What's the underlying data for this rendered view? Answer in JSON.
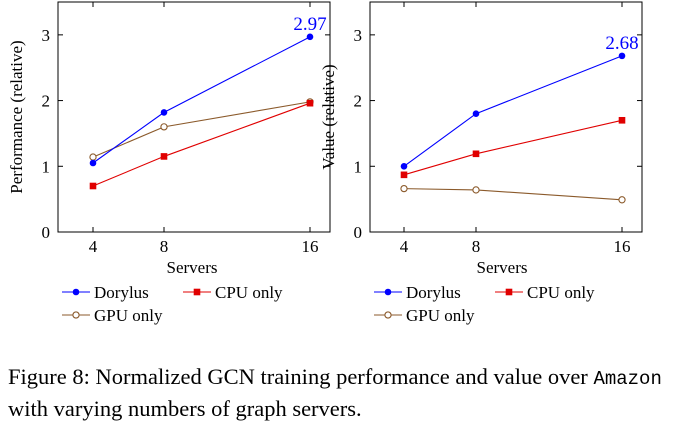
{
  "chart_data": [
    {
      "type": "line",
      "xlabel": "Servers",
      "ylabel": "Performance (relative)",
      "x": [
        4,
        8,
        16
      ],
      "x_tick_labels": [
        "4",
        "8",
        "16"
      ],
      "ylim": [
        0,
        3.5
      ],
      "y_ticks": [
        0,
        1,
        2,
        3
      ],
      "y_tick_labels": [
        "0",
        "1",
        "2",
        "3"
      ],
      "series": [
        {
          "name": "Dorylus",
          "marker": "filled-circle",
          "color": "#0000ff",
          "values": [
            1.05,
            1.82,
            2.97
          ]
        },
        {
          "name": "CPU only",
          "marker": "filled-square",
          "color": "#e00000",
          "values": [
            0.7,
            1.15,
            1.96
          ]
        },
        {
          "name": "GPU only",
          "marker": "open-circle",
          "color": "#8b5a2b",
          "values": [
            1.14,
            1.6,
            1.98
          ]
        }
      ],
      "annotation": {
        "text": "2.97",
        "series": 0,
        "index": 2,
        "color": "#0000ff"
      },
      "legend": "bottom",
      "legend_labels": [
        "Dorylus",
        "CPU only",
        "GPU only"
      ]
    },
    {
      "type": "line",
      "xlabel": "Servers",
      "ylabel": "Value (relative)",
      "x": [
        4,
        8,
        16
      ],
      "x_tick_labels": [
        "4",
        "8",
        "16"
      ],
      "ylim": [
        0,
        3.5
      ],
      "y_ticks": [
        0,
        1,
        2,
        3
      ],
      "y_tick_labels": [
        "0",
        "1",
        "2",
        "3"
      ],
      "series": [
        {
          "name": "Dorylus",
          "marker": "filled-circle",
          "color": "#0000ff",
          "values": [
            1.0,
            1.8,
            2.68
          ]
        },
        {
          "name": "CPU only",
          "marker": "filled-square",
          "color": "#e00000",
          "values": [
            0.87,
            1.19,
            1.7
          ]
        },
        {
          "name": "GPU only",
          "marker": "open-circle",
          "color": "#8b5a2b",
          "values": [
            0.66,
            0.64,
            0.49
          ]
        }
      ],
      "annotation": {
        "text": "2.68",
        "series": 0,
        "index": 2,
        "color": "#0000ff"
      },
      "legend": "bottom",
      "legend_labels": [
        "Dorylus",
        "CPU only",
        "GPU only"
      ]
    }
  ],
  "caption": {
    "prefix": "Figure 8: Normalized GCN training performance and value over ",
    "dataset": "Amazon",
    "suffix": " with varying numbers of graph servers."
  }
}
